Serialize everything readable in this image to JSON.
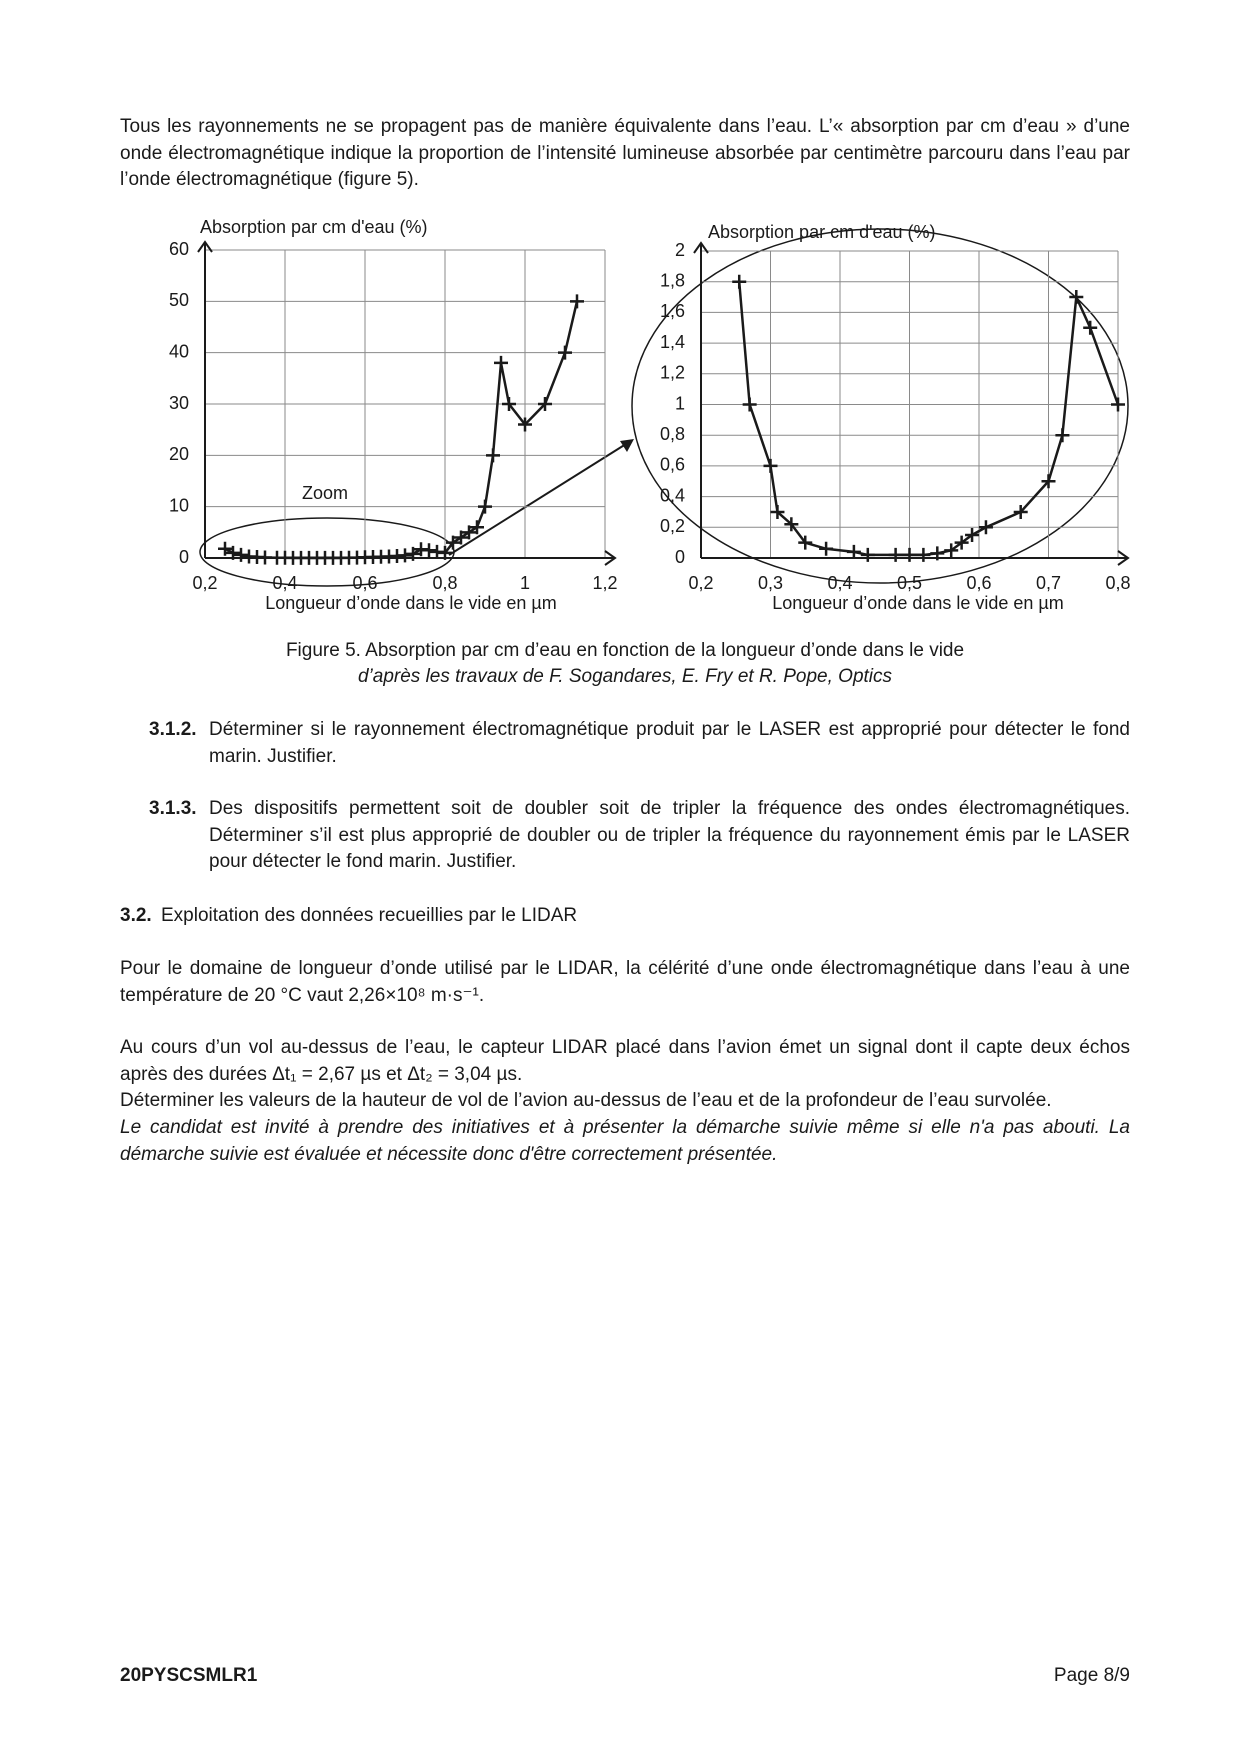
{
  "intro": "Tous les rayonnements ne se propagent pas de manière équivalente dans l’eau. L’« absorption par cm d’eau » d’une onde électromagnétique indique la proportion de l’intensité lumineuse absorbée par centimètre parcouru dans l’eau par l’onde électromagnétique (figure 5).",
  "chart_data": [
    {
      "type": "line",
      "y_label": "Absorption par cm d'eau (%)",
      "x_label": "Longueur d’onde dans le vide en µm",
      "annotation": "Zoom",
      "x": [
        0.25,
        0.27,
        0.29,
        0.31,
        0.33,
        0.35,
        0.38,
        0.4,
        0.42,
        0.44,
        0.46,
        0.48,
        0.5,
        0.52,
        0.54,
        0.56,
        0.58,
        0.6,
        0.62,
        0.64,
        0.66,
        0.68,
        0.7,
        0.72,
        0.74,
        0.76,
        0.78,
        0.8,
        0.82,
        0.84,
        0.86,
        0.88,
        0.9,
        0.92,
        0.94,
        0.96,
        1.0,
        1.05,
        1.1,
        1.13
      ],
      "series": [
        {
          "color": "#1a1a1a",
          "values": [
            1.8,
            1,
            0.6,
            0.3,
            0.2,
            0.1,
            0.06,
            0.04,
            0.03,
            0.02,
            0.02,
            0.02,
            0.02,
            0.02,
            0.03,
            0.05,
            0.08,
            0.15,
            0.2,
            0.25,
            0.3,
            0.4,
            0.5,
            0.8,
            1.7,
            1.5,
            1.2,
            1,
            3,
            4,
            5,
            6,
            10,
            20,
            38,
            30,
            26,
            30,
            40,
            50
          ]
        }
      ],
      "xlim": [
        0.2,
        1.2
      ],
      "ylim": [
        0,
        60
      ],
      "xticks": [
        {
          "value": 0.2,
          "label": "0,2"
        },
        {
          "value": 0.4,
          "label": "0,4"
        },
        {
          "value": 0.6,
          "label": "0,6"
        },
        {
          "value": 0.8,
          "label": "0,8"
        },
        1,
        {
          "value": 1.2,
          "label": "1,2"
        }
      ],
      "yticks": [
        0,
        10,
        20,
        30,
        40,
        50,
        60
      ],
      "grid": true
    },
    {
      "type": "line",
      "y_label": "Absorption par cm d'eau (%)",
      "x_label": "Longueur d’onde dans le vide en µm",
      "x": [
        0.255,
        0.27,
        0.3,
        0.31,
        0.33,
        0.35,
        0.38,
        0.42,
        0.44,
        0.48,
        0.5,
        0.52,
        0.54,
        0.56,
        0.575,
        0.59,
        0.61,
        0.66,
        0.7,
        0.72,
        0.74,
        0.76,
        0.8
      ],
      "series": [
        {
          "color": "#1a1a1a",
          "values": [
            1.8,
            1.0,
            0.6,
            0.3,
            0.22,
            0.1,
            0.06,
            0.04,
            0.02,
            0.02,
            0.02,
            0.02,
            0.03,
            0.05,
            0.1,
            0.15,
            0.2,
            0.3,
            0.5,
            0.8,
            1.7,
            1.5,
            1.0
          ]
        }
      ],
      "xlim": [
        0.2,
        0.8
      ],
      "ylim": [
        0,
        2
      ],
      "xticks": [
        {
          "value": 0.2,
          "label": "0,2"
        },
        {
          "value": 0.3,
          "label": "0,3"
        },
        {
          "value": 0.4,
          "label": "0,4"
        },
        {
          "value": 0.5,
          "label": "0,5"
        },
        {
          "value": 0.6,
          "label": "0,6"
        },
        {
          "value": 0.7,
          "label": "0,7"
        },
        {
          "value": 0.8,
          "label": "0,8"
        }
      ],
      "yticks": [
        0,
        {
          "value": 0.2,
          "label": "0,2"
        },
        {
          "value": 0.4,
          "label": "0,4"
        },
        {
          "value": 0.6,
          "label": "0,6"
        },
        {
          "value": 0.8,
          "label": "0,8"
        },
        1,
        {
          "value": 1.2,
          "label": "1,2"
        },
        {
          "value": 1.4,
          "label": "1,4"
        },
        {
          "value": 1.6,
          "label": "1,6"
        },
        {
          "value": 1.8,
          "label": "1,8"
        },
        2
      ],
      "grid": true
    }
  ],
  "figure_caption": {
    "line1": "Figure 5. Absorption par cm d’eau en fonction de la longueur d’onde dans le vide",
    "line2": "d’après les travaux de F. Sogandares, E. Fry et R. Pope, Optics"
  },
  "questions": [
    {
      "number": "3.1.2.",
      "text": "Déterminer si le rayonnement électromagnétique produit par le LASER est approprié pour détecter le fond marin. Justifier."
    },
    {
      "number": "3.1.3.",
      "text": "Des dispositifs permettent soit de doubler soit de tripler la fréquence des ondes électromagnétiques. Déterminer s’il est plus approprié de doubler ou de tripler la fréquence du rayonnement émis par le LASER pour détecter le fond marin. Justifier."
    }
  ],
  "section": {
    "number": "3.2.",
    "title": "Exploitation des données recueillies par le LIDAR"
  },
  "body": [
    "Pour le domaine de longueur d’onde utilisé par le LIDAR, la célérité d’une onde électromagnétique dans l’eau à une température de 20 °C vaut 2,26×10⁸ m·s⁻¹.",
    "Au cours d’un vol au-dessus de l’eau, le capteur LIDAR placé dans l’avion émet un signal dont il capte deux échos après des durées Δt₁ = 2,67 µs et Δt₂ = 3,04 µs.",
    "Déterminer les valeurs de la hauteur de vol de l’avion au-dessus de l’eau et de la profondeur de l’eau survolée.",
    "Le candidat est invité à prendre des initiatives et à présenter la démarche suivie même si elle n'a pas abouti. La démarche suivie est évaluée et nécessite donc d'être correctement présentée."
  ],
  "footer": {
    "code": "20PYSCSMLR1",
    "page": "Page 8/9"
  }
}
